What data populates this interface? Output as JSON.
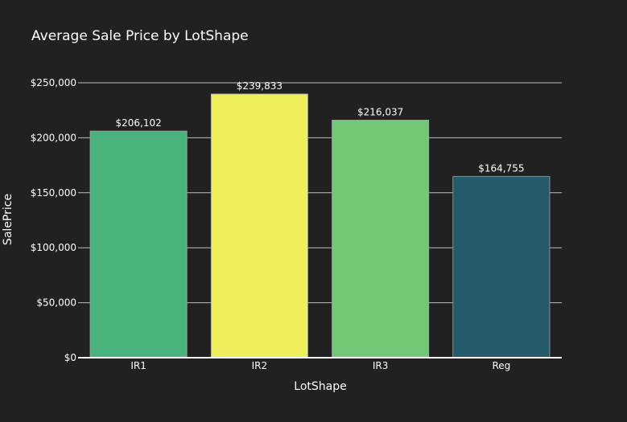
{
  "chart_data": {
    "type": "bar",
    "title": "Average Sale Price by LotShape",
    "xlabel": "LotShape",
    "ylabel": "SalePrice",
    "categories": [
      "IR1",
      "IR2",
      "IR3",
      "Reg"
    ],
    "values": [
      206102,
      239833,
      216037,
      164755
    ],
    "data_labels": [
      "$206,102",
      "$239,833",
      "$216,037",
      "$164,755"
    ],
    "colors": [
      "#4ab37b",
      "#eeef5a",
      "#72c875",
      "#255a6b"
    ],
    "ylim": [
      0,
      250000
    ],
    "y_ticks": [
      0,
      50000,
      100000,
      150000,
      200000,
      250000
    ],
    "y_tick_labels": [
      "$0",
      "$50,000",
      "$100,000",
      "$150,000",
      "$200,000",
      "$250,000"
    ],
    "grid": true,
    "legend": "none"
  }
}
